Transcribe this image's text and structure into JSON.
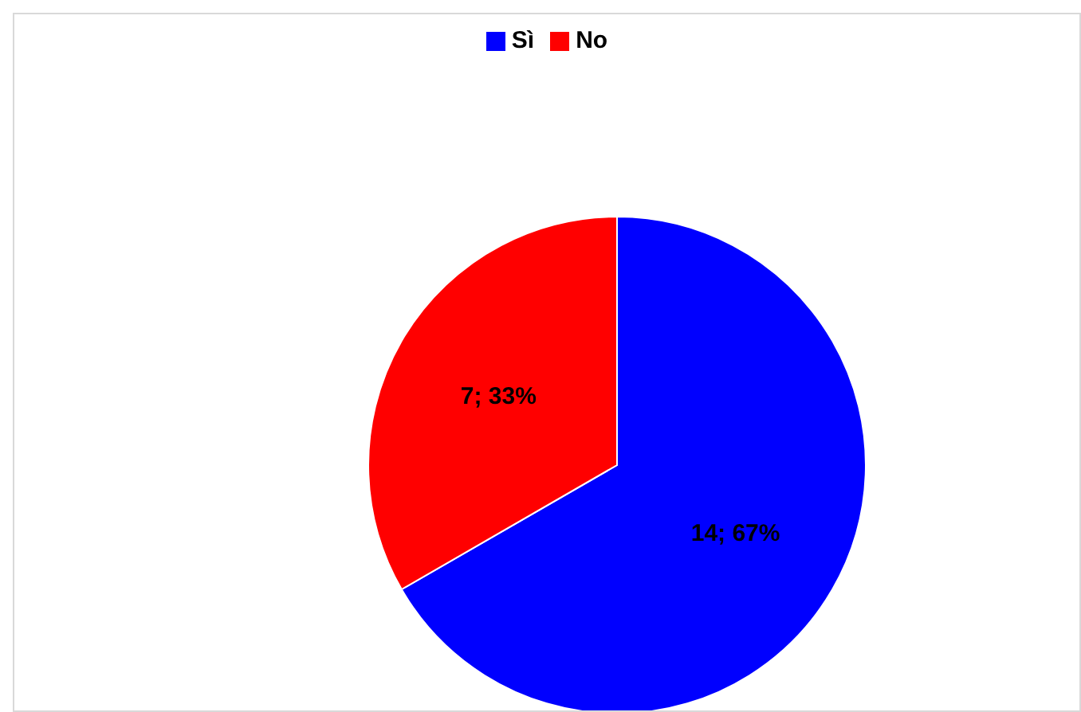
{
  "chart_data": {
    "type": "pie",
    "categories": [
      "Sì",
      "No"
    ],
    "values": [
      14,
      7
    ],
    "colors": [
      "#0000ff",
      "#ff0000"
    ],
    "value_labels": [
      "14; 67%",
      "7; 33%"
    ],
    "legend": "top"
  }
}
